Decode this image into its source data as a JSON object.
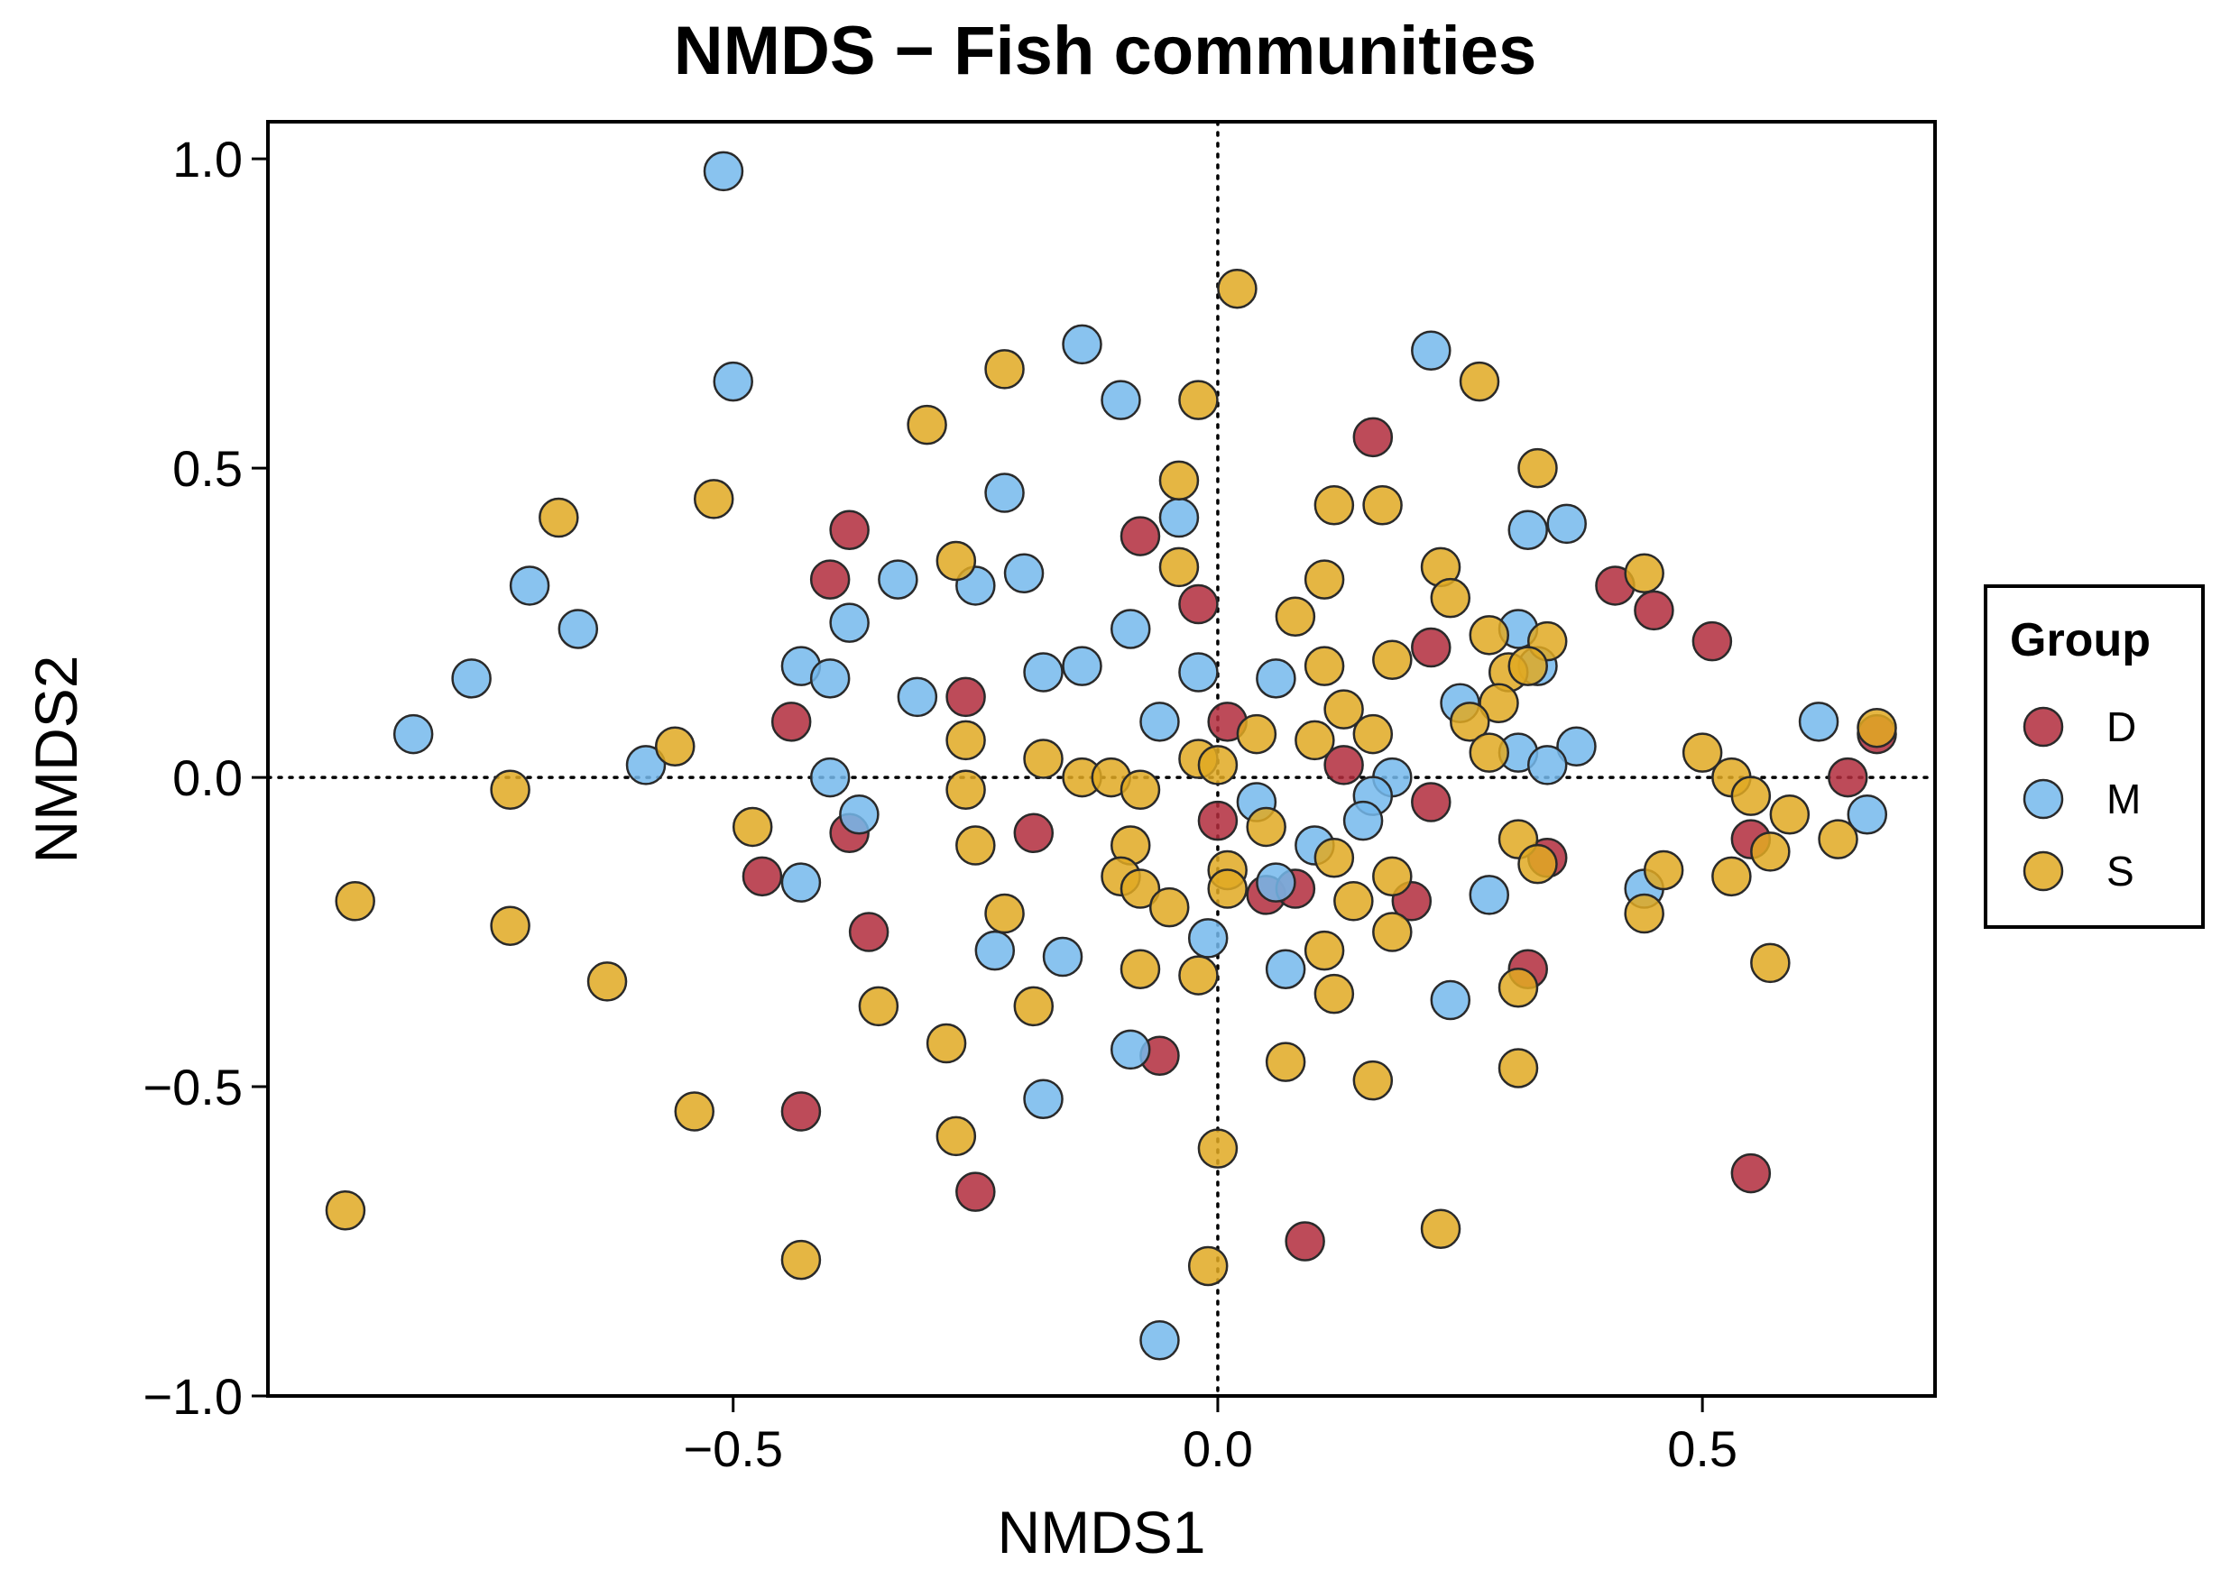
{
  "chart_data": {
    "type": "scatter",
    "title": "NMDS − Fish communities",
    "xlabel": "NMDS1",
    "ylabel": "NMDS2",
    "xlim": [
      -0.98,
      0.74
    ],
    "ylim": [
      -1.0,
      1.06
    ],
    "xticks": [
      {
        "value": -0.5,
        "label": "−0.5"
      },
      {
        "value": 0.0,
        "label": "0.0"
      },
      {
        "value": 0.5,
        "label": "0.5"
      }
    ],
    "yticks": [
      {
        "value": -1.0,
        "label": "−1.0"
      },
      {
        "value": -0.5,
        "label": "−0.5"
      },
      {
        "value": 0.0,
        "label": "0.0"
      },
      {
        "value": 0.5,
        "label": "0.5"
      },
      {
        "value": 1.0,
        "label": "1.0"
      }
    ],
    "reference_lines": {
      "x": 0.0,
      "y": 0.0,
      "style": "dotted"
    },
    "legend": {
      "title": "Group",
      "position": "right"
    },
    "series": [
      {
        "name": "D",
        "color": "#b22c3c",
        "points": [
          [
            0.16,
            0.55
          ],
          [
            -0.08,
            0.39
          ],
          [
            -0.38,
            0.4
          ],
          [
            -0.4,
            0.32
          ],
          [
            -0.02,
            0.28
          ],
          [
            0.41,
            0.31
          ],
          [
            0.45,
            0.27
          ],
          [
            0.51,
            0.22
          ],
          [
            0.22,
            0.21
          ],
          [
            -0.26,
            0.13
          ],
          [
            -0.44,
            0.09
          ],
          [
            0.01,
            0.09
          ],
          [
            0.68,
            0.07
          ],
          [
            0.13,
            0.02
          ],
          [
            0.65,
            0.0
          ],
          [
            0.22,
            -0.04
          ],
          [
            -0.38,
            -0.09
          ],
          [
            -0.19,
            -0.09
          ],
          [
            0.0,
            -0.07
          ],
          [
            0.55,
            -0.1
          ],
          [
            0.34,
            -0.13
          ],
          [
            -0.47,
            -0.16
          ],
          [
            0.05,
            -0.19
          ],
          [
            0.08,
            -0.18
          ],
          [
            0.2,
            -0.2
          ],
          [
            -0.36,
            -0.25
          ],
          [
            0.32,
            -0.31
          ],
          [
            -0.06,
            -0.45
          ],
          [
            -0.43,
            -0.54
          ],
          [
            -0.25,
            -0.67
          ],
          [
            0.09,
            -0.75
          ],
          [
            0.55,
            -0.64
          ]
        ]
      },
      {
        "name": "M",
        "color": "#74b8ec",
        "points": [
          [
            -0.51,
            0.98
          ],
          [
            -0.5,
            0.64
          ],
          [
            -0.14,
            0.7
          ],
          [
            -0.1,
            0.61
          ],
          [
            0.22,
            0.69
          ],
          [
            -0.22,
            0.46
          ],
          [
            -0.04,
            0.42
          ],
          [
            0.32,
            0.4
          ],
          [
            0.36,
            0.41
          ],
          [
            -0.71,
            0.31
          ],
          [
            -0.33,
            0.32
          ],
          [
            -0.25,
            0.31
          ],
          [
            -0.2,
            0.33
          ],
          [
            -0.66,
            0.24
          ],
          [
            -0.38,
            0.25
          ],
          [
            -0.09,
            0.24
          ],
          [
            0.31,
            0.24
          ],
          [
            -0.77,
            0.16
          ],
          [
            -0.43,
            0.18
          ],
          [
            -0.4,
            0.16
          ],
          [
            -0.18,
            0.17
          ],
          [
            -0.14,
            0.18
          ],
          [
            -0.02,
            0.17
          ],
          [
            0.06,
            0.16
          ],
          [
            0.33,
            0.18
          ],
          [
            -0.31,
            0.13
          ],
          [
            0.25,
            0.12
          ],
          [
            -0.83,
            0.07
          ],
          [
            -0.06,
            0.09
          ],
          [
            0.62,
            0.09
          ],
          [
            0.31,
            0.04
          ],
          [
            0.37,
            0.05
          ],
          [
            0.34,
            0.02
          ],
          [
            -0.59,
            0.02
          ],
          [
            -0.4,
            0.0
          ],
          [
            0.18,
            0.0
          ],
          [
            0.16,
            -0.03
          ],
          [
            -0.37,
            -0.06
          ],
          [
            0.04,
            -0.04
          ],
          [
            0.15,
            -0.07
          ],
          [
            0.1,
            -0.11
          ],
          [
            0.67,
            -0.06
          ],
          [
            -0.43,
            -0.17
          ],
          [
            0.06,
            -0.17
          ],
          [
            0.28,
            -0.19
          ],
          [
            0.44,
            -0.18
          ],
          [
            -0.23,
            -0.28
          ],
          [
            -0.16,
            -0.29
          ],
          [
            -0.01,
            -0.26
          ],
          [
            0.07,
            -0.31
          ],
          [
            0.24,
            -0.36
          ],
          [
            -0.09,
            -0.44
          ],
          [
            -0.18,
            -0.52
          ],
          [
            -0.06,
            -0.91
          ]
        ]
      },
      {
        "name": "S",
        "color": "#e0a922",
        "points": [
          [
            0.02,
            0.79
          ],
          [
            -0.22,
            0.66
          ],
          [
            -0.02,
            0.61
          ],
          [
            -0.3,
            0.57
          ],
          [
            0.27,
            0.64
          ],
          [
            -0.52,
            0.45
          ],
          [
            -0.68,
            0.42
          ],
          [
            -0.04,
            0.48
          ],
          [
            0.12,
            0.44
          ],
          [
            0.17,
            0.44
          ],
          [
            0.33,
            0.5
          ],
          [
            -0.27,
            0.35
          ],
          [
            -0.04,
            0.34
          ],
          [
            0.11,
            0.32
          ],
          [
            0.23,
            0.34
          ],
          [
            0.44,
            0.33
          ],
          [
            0.08,
            0.26
          ],
          [
            0.24,
            0.29
          ],
          [
            0.28,
            0.23
          ],
          [
            0.34,
            0.22
          ],
          [
            0.11,
            0.18
          ],
          [
            0.18,
            0.19
          ],
          [
            0.3,
            0.17
          ],
          [
            0.32,
            0.18
          ],
          [
            0.13,
            0.11
          ],
          [
            0.29,
            0.12
          ],
          [
            0.26,
            0.09
          ],
          [
            -0.56,
            0.05
          ],
          [
            -0.26,
            0.06
          ],
          [
            -0.18,
            0.03
          ],
          [
            0.04,
            0.07
          ],
          [
            0.1,
            0.06
          ],
          [
            0.16,
            0.07
          ],
          [
            0.28,
            0.04
          ],
          [
            0.5,
            0.04
          ],
          [
            0.68,
            0.08
          ],
          [
            -0.73,
            -0.02
          ],
          [
            -0.26,
            -0.02
          ],
          [
            -0.14,
            0.0
          ],
          [
            -0.11,
            0.0
          ],
          [
            -0.08,
            -0.02
          ],
          [
            -0.02,
            0.03
          ],
          [
            0.0,
            0.02
          ],
          [
            0.53,
            0.0
          ],
          [
            0.55,
            -0.03
          ],
          [
            0.59,
            -0.06
          ],
          [
            -0.48,
            -0.08
          ],
          [
            -0.25,
            -0.11
          ],
          [
            -0.09,
            -0.11
          ],
          [
            0.05,
            -0.08
          ],
          [
            0.31,
            -0.1
          ],
          [
            0.64,
            -0.1
          ],
          [
            0.57,
            -0.12
          ],
          [
            -0.89,
            -0.2
          ],
          [
            -0.1,
            -0.16
          ],
          [
            -0.08,
            -0.18
          ],
          [
            0.01,
            -0.15
          ],
          [
            0.01,
            -0.18
          ],
          [
            0.12,
            -0.13
          ],
          [
            0.18,
            -0.16
          ],
          [
            0.33,
            -0.14
          ],
          [
            0.46,
            -0.15
          ],
          [
            0.53,
            -0.16
          ],
          [
            -0.73,
            -0.24
          ],
          [
            -0.22,
            -0.22
          ],
          [
            -0.05,
            -0.21
          ],
          [
            0.14,
            -0.2
          ],
          [
            0.18,
            -0.25
          ],
          [
            0.44,
            -0.22
          ],
          [
            0.11,
            -0.28
          ],
          [
            0.57,
            -0.3
          ],
          [
            -0.63,
            -0.33
          ],
          [
            -0.08,
            -0.31
          ],
          [
            -0.02,
            -0.32
          ],
          [
            0.12,
            -0.35
          ],
          [
            0.31,
            -0.34
          ],
          [
            -0.35,
            -0.37
          ],
          [
            -0.19,
            -0.37
          ],
          [
            -0.28,
            -0.43
          ],
          [
            0.07,
            -0.46
          ],
          [
            0.31,
            -0.47
          ],
          [
            0.16,
            -0.49
          ],
          [
            -0.54,
            -0.54
          ],
          [
            -0.27,
            -0.58
          ],
          [
            0.0,
            -0.6
          ],
          [
            -0.9,
            -0.7
          ],
          [
            -0.43,
            -0.78
          ],
          [
            0.23,
            -0.73
          ],
          [
            -0.01,
            -0.79
          ]
        ]
      }
    ]
  }
}
